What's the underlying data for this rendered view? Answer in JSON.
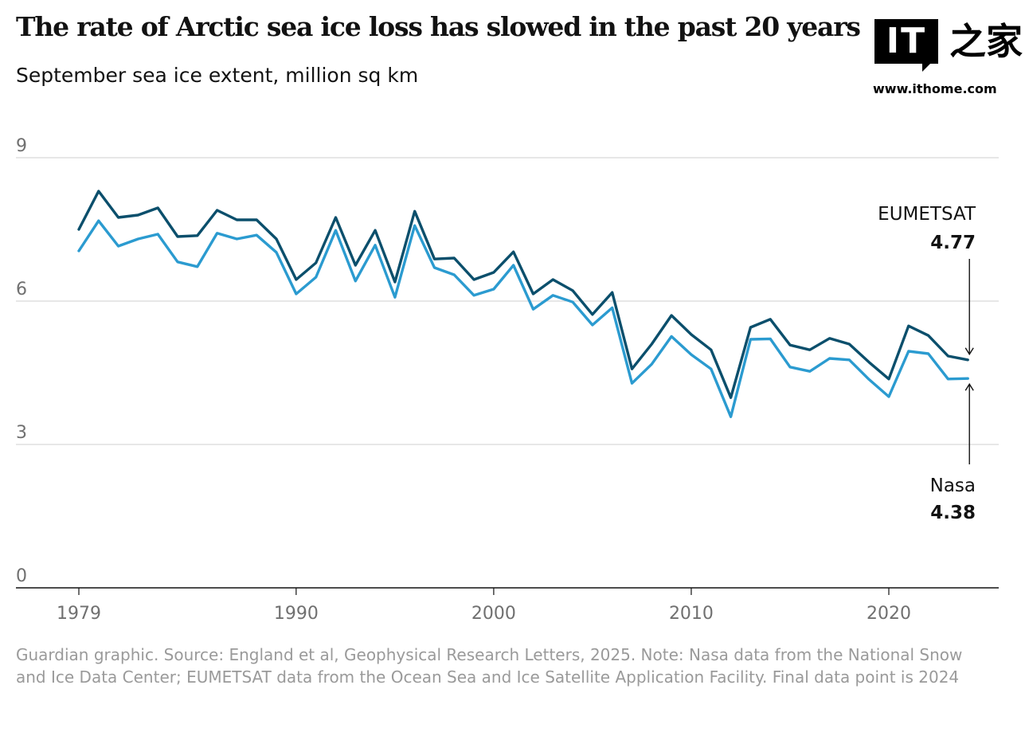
{
  "header": {
    "title": "The rate of Arctic sea ice loss has slowed in the past 20 years",
    "subtitle": "September sea ice extent, million sq km"
  },
  "watermark": {
    "logo_text": "IT",
    "logo_cn": "之家",
    "url": "www.ithome.com"
  },
  "footer": {
    "source": "Guardian graphic. Source: England et al, Geophysical Research Letters, 2025. Note: Nasa data from the National Snow and Ice Data Center; EUMETSAT data from the Ocean Sea and Ice Satellite Application Facility. Final data point is 2024"
  },
  "chart_data": {
    "type": "line",
    "title": "The rate of Arctic sea ice loss has slowed in the past 20 years",
    "subtitle": "September sea ice extent, million sq km",
    "xlabel": "",
    "ylabel": "",
    "ylim": [
      0,
      9
    ],
    "yticks": [
      0,
      3,
      6,
      9
    ],
    "xlim": [
      1976,
      2025.5
    ],
    "xticks": [
      1979,
      1990,
      2000,
      2010,
      2020
    ],
    "grid": true,
    "x": [
      1979,
      1980,
      1981,
      1982,
      1983,
      1984,
      1985,
      1986,
      1987,
      1988,
      1989,
      1990,
      1991,
      1992,
      1993,
      1994,
      1995,
      1996,
      1997,
      1998,
      1999,
      2000,
      2001,
      2002,
      2003,
      2004,
      2005,
      2006,
      2007,
      2008,
      2009,
      2010,
      2011,
      2012,
      2013,
      2014,
      2015,
      2016,
      2017,
      2018,
      2019,
      2020,
      2021,
      2022,
      2023,
      2024
    ],
    "series": [
      {
        "name": "EUMETSAT",
        "color": "#0b4f6c",
        "end_label": "4.77",
        "values": [
          7.5,
          8.3,
          7.75,
          7.8,
          7.95,
          7.35,
          7.37,
          7.9,
          7.7,
          7.7,
          7.3,
          6.45,
          6.8,
          7.75,
          6.75,
          7.48,
          6.4,
          7.88,
          6.88,
          6.9,
          6.45,
          6.6,
          7.03,
          6.15,
          6.45,
          6.22,
          5.72,
          6.18,
          4.58,
          5.1,
          5.7,
          5.3,
          4.98,
          3.98,
          5.45,
          5.62,
          5.08,
          4.98,
          5.22,
          5.1,
          4.72,
          4.37,
          5.48,
          5.28,
          4.85,
          4.77
        ]
      },
      {
        "name": "Nasa",
        "color": "#2b9bd0",
        "end_label": "4.38",
        "values": [
          7.05,
          7.68,
          7.15,
          7.3,
          7.4,
          6.82,
          6.72,
          7.42,
          7.3,
          7.38,
          7.02,
          6.15,
          6.5,
          7.48,
          6.42,
          7.17,
          6.08,
          7.58,
          6.7,
          6.55,
          6.12,
          6.25,
          6.75,
          5.83,
          6.12,
          5.98,
          5.5,
          5.86,
          4.28,
          4.68,
          5.26,
          4.88,
          4.58,
          3.58,
          5.2,
          5.21,
          4.62,
          4.53,
          4.8,
          4.77,
          4.36,
          4.0,
          4.95,
          4.9,
          4.37,
          4.38
        ]
      }
    ]
  }
}
